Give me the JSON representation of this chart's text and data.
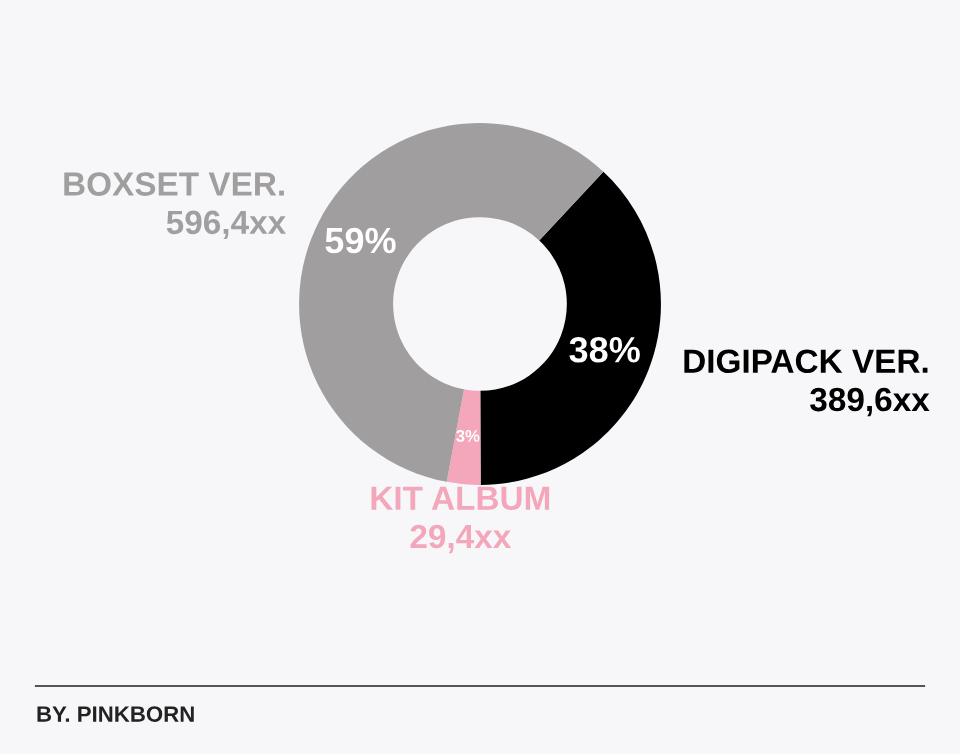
{
  "chart_data": {
    "type": "donut",
    "categories": [
      "DIGIPACK VER.",
      "KIT ALBUM",
      "BOXSET VER."
    ],
    "values": [
      38,
      3,
      59
    ],
    "value_labels": [
      "38%",
      "3%",
      "59%"
    ],
    "colors": [
      "#000000",
      "#f4a6bb",
      "#a19e9f"
    ],
    "annotations": [
      "389,6xx",
      "29,4xx",
      "596,4xx",
      "BY. PINKBORN"
    ],
    "legend": false
  }
}
